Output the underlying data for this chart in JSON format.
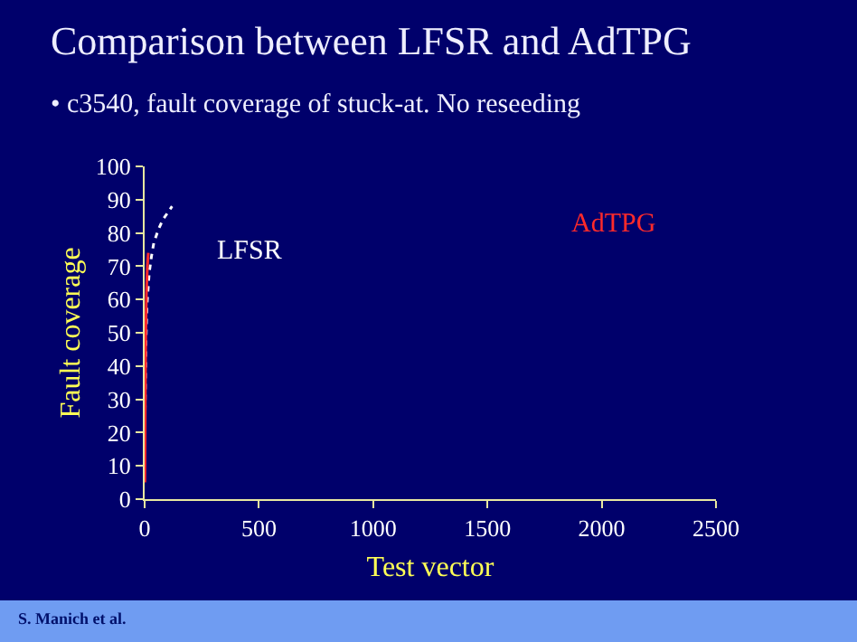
{
  "chart_data": {
    "type": "line",
    "title": "Comparison between LFSR and AdTPG",
    "subtitle": "• c3540, fault coverage of stuck-at. No reseeding",
    "xlabel": "Test vector",
    "ylabel": "Fault coverage",
    "series": [
      {
        "name": "LFSR",
        "color": "#ffffff",
        "line_style": "dotted",
        "x": [
          1,
          5,
          10,
          20,
          30,
          40,
          60,
          80,
          100,
          120
        ],
        "values": [
          20,
          45,
          58,
          68,
          73,
          77,
          81,
          84,
          86,
          88
        ]
      },
      {
        "name": "AdTPG",
        "color": "#ff2a2a",
        "line_style": "solid",
        "x": [
          1,
          3,
          5,
          8,
          12,
          16
        ],
        "values": [
          5,
          30,
          50,
          62,
          70,
          74
        ]
      }
    ],
    "xlim": [
      0,
      2500
    ],
    "xticks": [
      0,
      500,
      1000,
      1500,
      2000,
      2500
    ],
    "ylim": [
      0,
      100
    ],
    "yticks": [
      0,
      10,
      20,
      30,
      40,
      50,
      60,
      70,
      80,
      90,
      100
    ],
    "grid": false,
    "legend": false,
    "marker": "none",
    "annotations": [
      "S. Manich et al."
    ]
  }
}
